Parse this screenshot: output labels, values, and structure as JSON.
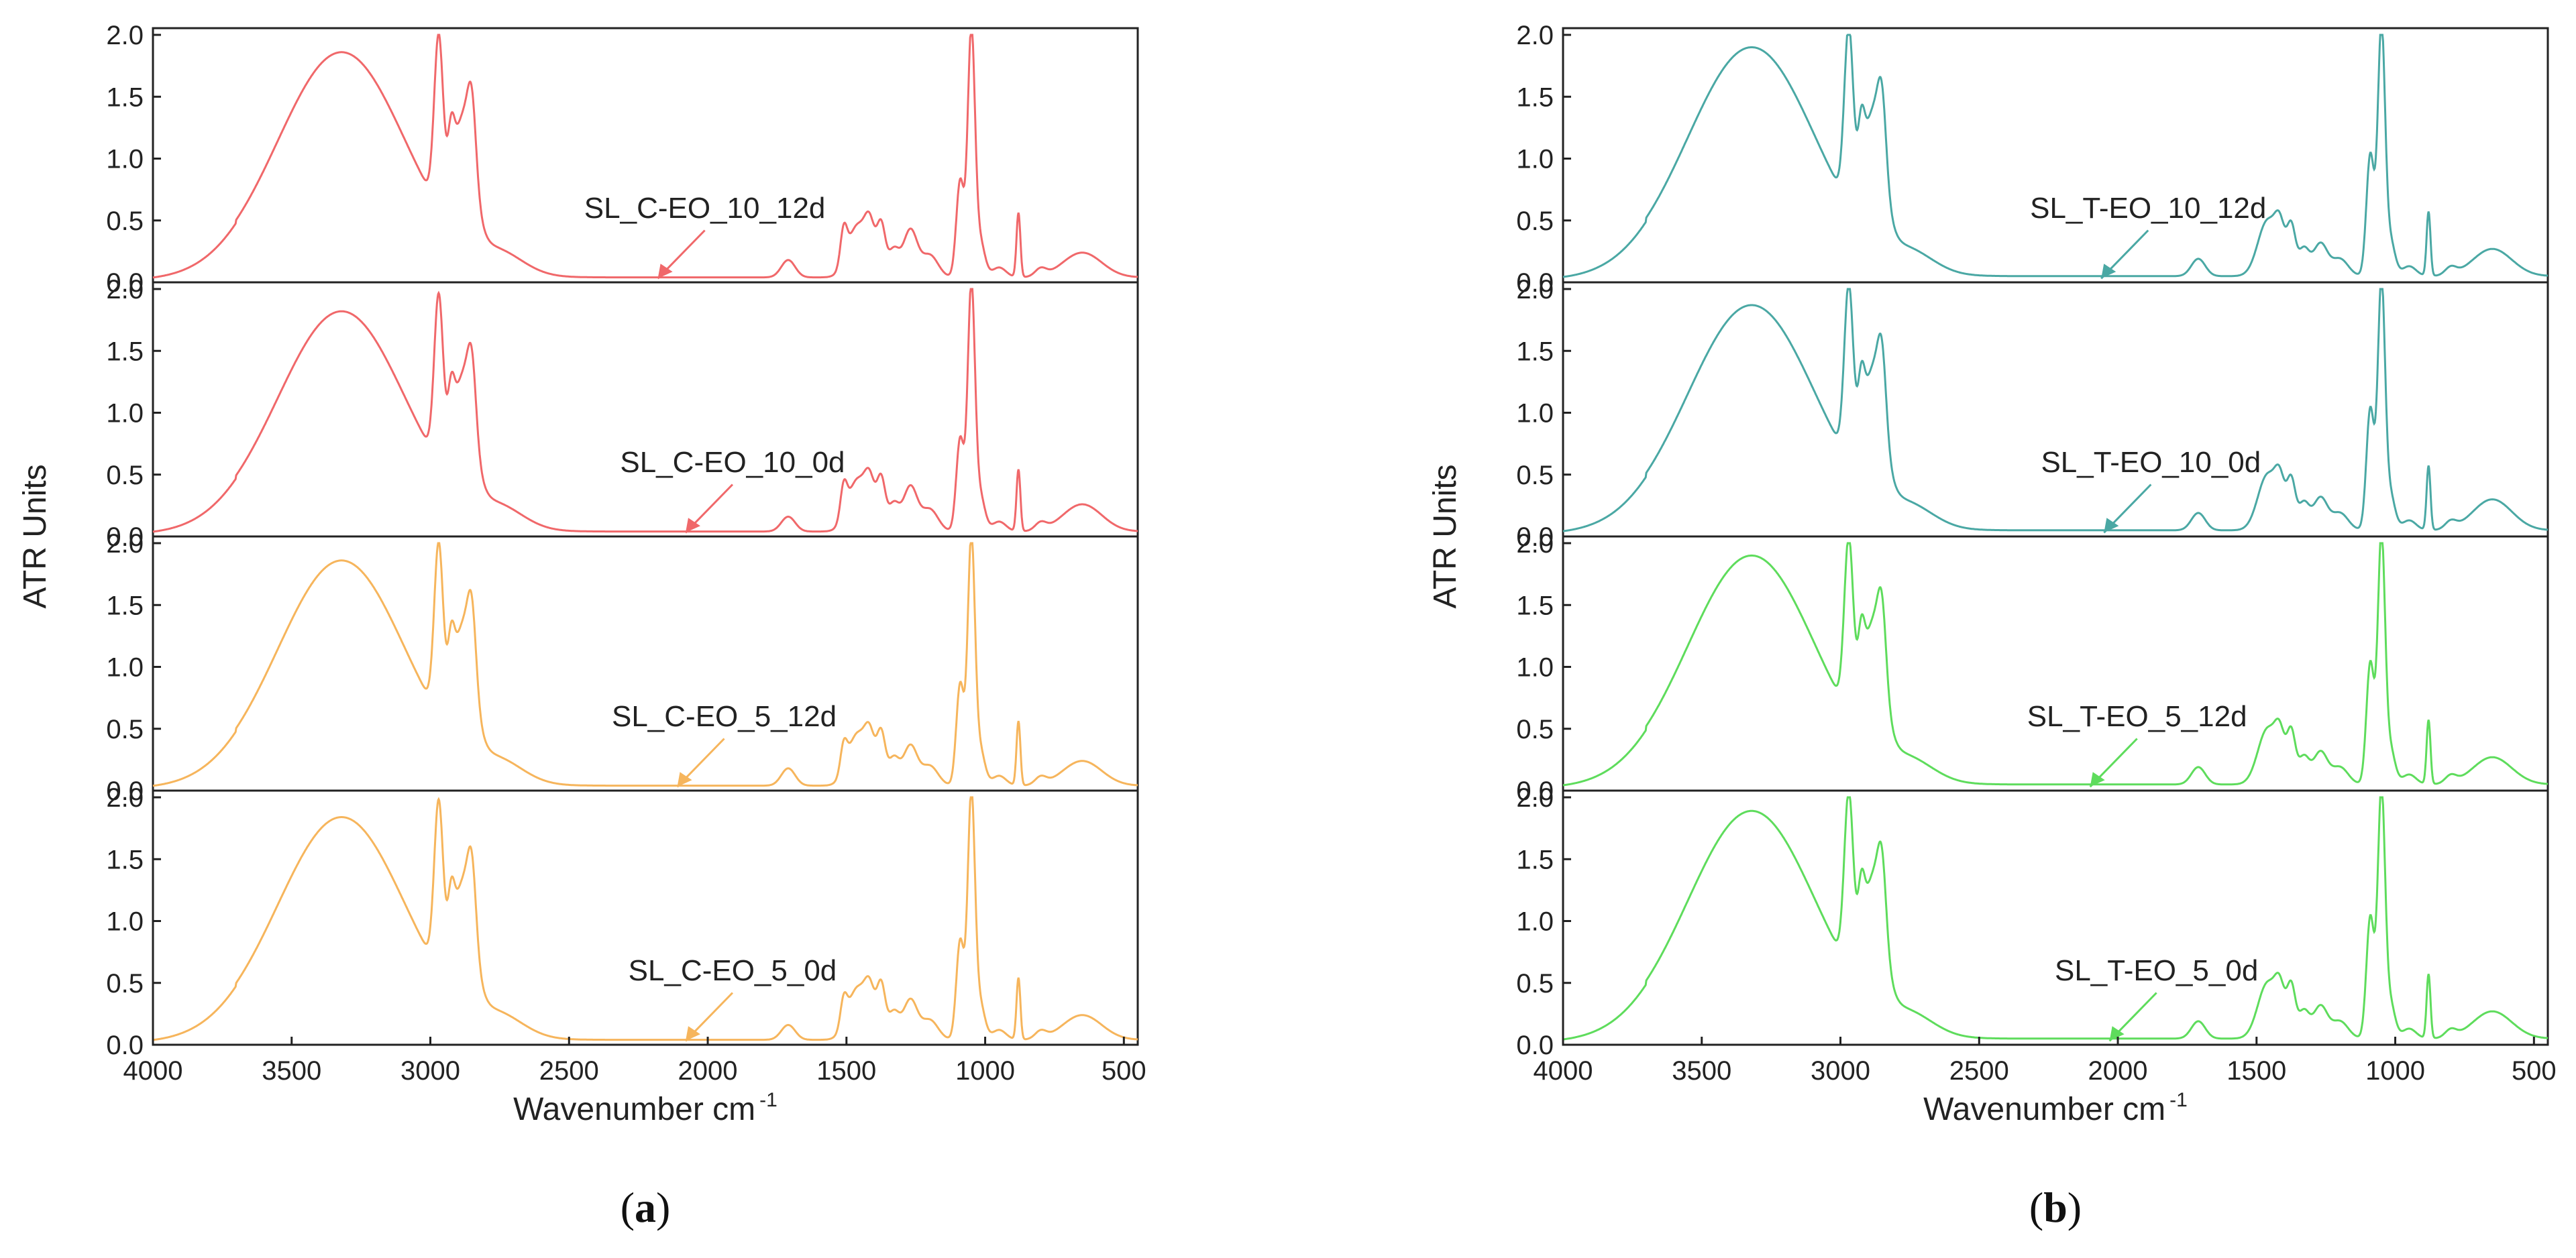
{
  "chart_data": [
    {
      "type": "line",
      "panel": "a",
      "caption_open": "(",
      "caption_letter": "a",
      "caption_close": ")",
      "xlabel": "Wavenumber cm",
      "xlabel_sup": "-1",
      "ylabel": "ATR Units",
      "xlim": [
        4000,
        450
      ],
      "xticks": [
        "4000",
        "3500",
        "3000",
        "2500",
        "2000",
        "1500",
        "1000",
        "500"
      ],
      "ylim": [
        0,
        2.0
      ],
      "yticks": [
        "0.0",
        "0.5",
        "1.0",
        "1.5",
        "2.0"
      ],
      "grid": false,
      "series": [
        {
          "name": "SL_C-EO_10_12d",
          "color": "#f0686a",
          "annotation_x": 2180,
          "baseline": 0.04,
          "peaks": [
            [
              3320,
              1.82,
              230
            ],
            [
              2970,
              1.35,
              16
            ],
            [
              2925,
              0.42,
              12
            ],
            [
              2880,
              0.95,
              36
            ],
            [
              2850,
              0.55,
              15
            ],
            [
              2750,
              0.15,
              90
            ],
            [
              1710,
              0.14,
              25
            ],
            [
              1510,
              0.28,
              12
            ],
            [
              1460,
              0.42,
              35
            ],
            [
              1415,
              0.32,
              18
            ],
            [
              1375,
              0.4,
              15
            ],
            [
              1330,
              0.22,
              20
            ],
            [
              1270,
              0.38,
              25
            ],
            [
              1200,
              0.18,
              30
            ],
            [
              1090,
              0.78,
              14
            ],
            [
              1050,
              1.95,
              13
            ],
            [
              1020,
              0.3,
              18
            ],
            [
              950,
              0.08,
              25
            ],
            [
              880,
              0.52,
              7
            ],
            [
              800,
              0.06,
              20
            ],
            [
              650,
              0.2,
              70
            ]
          ]
        },
        {
          "name": "SL_C-EO_10_0d",
          "color": "#f0686a",
          "annotation_x": 2080,
          "baseline": 0.04,
          "peaks": [
            [
              3320,
              1.78,
              230
            ],
            [
              2970,
              1.32,
              16
            ],
            [
              2925,
              0.4,
              12
            ],
            [
              2880,
              0.92,
              36
            ],
            [
              2850,
              0.52,
              15
            ],
            [
              2750,
              0.15,
              90
            ],
            [
              1710,
              0.12,
              25
            ],
            [
              1510,
              0.26,
              12
            ],
            [
              1460,
              0.42,
              35
            ],
            [
              1415,
              0.3,
              18
            ],
            [
              1375,
              0.4,
              15
            ],
            [
              1330,
              0.22,
              20
            ],
            [
              1270,
              0.36,
              25
            ],
            [
              1200,
              0.18,
              30
            ],
            [
              1090,
              0.75,
              14
            ],
            [
              1050,
              1.94,
              13
            ],
            [
              1020,
              0.3,
              18
            ],
            [
              950,
              0.08,
              25
            ],
            [
              880,
              0.5,
              7
            ],
            [
              800,
              0.06,
              20
            ],
            [
              650,
              0.22,
              70
            ]
          ]
        },
        {
          "name": "SL_C-EO_5_12d",
          "color": "#f6b55c",
          "annotation_x": 2110,
          "baseline": 0.04,
          "peaks": [
            [
              3320,
              1.82,
              230
            ],
            [
              2970,
              1.35,
              16
            ],
            [
              2925,
              0.42,
              12
            ],
            [
              2880,
              0.95,
              36
            ],
            [
              2850,
              0.55,
              15
            ],
            [
              2750,
              0.15,
              90
            ],
            [
              1710,
              0.14,
              25
            ],
            [
              1510,
              0.22,
              12
            ],
            [
              1460,
              0.42,
              35
            ],
            [
              1415,
              0.3,
              18
            ],
            [
              1375,
              0.4,
              15
            ],
            [
              1330,
              0.22,
              20
            ],
            [
              1270,
              0.32,
              25
            ],
            [
              1200,
              0.16,
              30
            ],
            [
              1090,
              0.82,
              14
            ],
            [
              1050,
              1.95,
              13
            ],
            [
              1020,
              0.3,
              18
            ],
            [
              950,
              0.08,
              25
            ],
            [
              880,
              0.52,
              7
            ],
            [
              800,
              0.06,
              20
            ],
            [
              650,
              0.2,
              70
            ]
          ]
        },
        {
          "name": "SL_C-EO_5_0d",
          "color": "#f6b55c",
          "annotation_x": 2080,
          "baseline": 0.04,
          "peaks": [
            [
              3320,
              1.8,
              230
            ],
            [
              2970,
              1.33,
              16
            ],
            [
              2925,
              0.42,
              12
            ],
            [
              2880,
              0.93,
              36
            ],
            [
              2850,
              0.55,
              15
            ],
            [
              2750,
              0.15,
              90
            ],
            [
              1710,
              0.12,
              25
            ],
            [
              1510,
              0.22,
              12
            ],
            [
              1460,
              0.42,
              35
            ],
            [
              1415,
              0.3,
              18
            ],
            [
              1375,
              0.42,
              15
            ],
            [
              1330,
              0.22,
              20
            ],
            [
              1270,
              0.32,
              25
            ],
            [
              1200,
              0.16,
              30
            ],
            [
              1090,
              0.8,
              14
            ],
            [
              1050,
              1.94,
              13
            ],
            [
              1020,
              0.3,
              18
            ],
            [
              950,
              0.08,
              25
            ],
            [
              880,
              0.5,
              7
            ],
            [
              800,
              0.06,
              20
            ],
            [
              650,
              0.2,
              70
            ]
          ]
        }
      ]
    },
    {
      "type": "line",
      "panel": "b",
      "caption_open": "(",
      "caption_letter": "b",
      "caption_close": ")",
      "xlabel": "Wavenumber cm",
      "xlabel_sup": "-1",
      "ylabel": "ATR Units",
      "xlim": [
        4000,
        450
      ],
      "xticks": [
        "4000",
        "3500",
        "3000",
        "2500",
        "2000",
        "1500",
        "1000",
        "500"
      ],
      "ylim": [
        0,
        2.0
      ],
      "yticks": [
        "0.0",
        "0.5",
        "1.0",
        "1.5",
        "2.0"
      ],
      "grid": false,
      "series": [
        {
          "name": "SL_T-EO_10_12d",
          "color": "#4aa8a4",
          "annotation_x": 2060,
          "baseline": 0.05,
          "peaks": [
            [
              3320,
              1.85,
              230
            ],
            [
              2970,
              1.4,
              16
            ],
            [
              2925,
              0.45,
              12
            ],
            [
              2880,
              0.98,
              36
            ],
            [
              2850,
              0.55,
              15
            ],
            [
              2750,
              0.15,
              90
            ],
            [
              1710,
              0.14,
              25
            ],
            [
              1460,
              0.45,
              35
            ],
            [
              1415,
              0.3,
              18
            ],
            [
              1375,
              0.38,
              15
            ],
            [
              1330,
              0.22,
              20
            ],
            [
              1270,
              0.26,
              25
            ],
            [
              1200,
              0.14,
              30
            ],
            [
              1090,
              0.98,
              14
            ],
            [
              1050,
              1.97,
              13
            ],
            [
              1020,
              0.3,
              18
            ],
            [
              950,
              0.08,
              25
            ],
            [
              880,
              0.52,
              7
            ],
            [
              800,
              0.06,
              20
            ],
            [
              650,
              0.22,
              70
            ]
          ]
        },
        {
          "name": "SL_T-EO_10_0d",
          "color": "#4aa8a4",
          "annotation_x": 2050,
          "baseline": 0.05,
          "peaks": [
            [
              3320,
              1.82,
              230
            ],
            [
              2970,
              1.38,
              16
            ],
            [
              2925,
              0.45,
              12
            ],
            [
              2880,
              0.96,
              36
            ],
            [
              2850,
              0.55,
              15
            ],
            [
              2750,
              0.15,
              90
            ],
            [
              1710,
              0.14,
              25
            ],
            [
              1460,
              0.45,
              35
            ],
            [
              1415,
              0.3,
              18
            ],
            [
              1375,
              0.38,
              15
            ],
            [
              1330,
              0.22,
              20
            ],
            [
              1270,
              0.26,
              25
            ],
            [
              1200,
              0.14,
              30
            ],
            [
              1090,
              0.98,
              14
            ],
            [
              1050,
              1.96,
              13
            ],
            [
              1020,
              0.3,
              18
            ],
            [
              950,
              0.08,
              25
            ],
            [
              880,
              0.52,
              7
            ],
            [
              800,
              0.06,
              20
            ],
            [
              650,
              0.25,
              70
            ]
          ]
        },
        {
          "name": "SL_T-EO_5_12d",
          "color": "#5edc5c",
          "annotation_x": 2100,
          "baseline": 0.05,
          "peaks": [
            [
              3320,
              1.85,
              230
            ],
            [
              2970,
              1.38,
              16
            ],
            [
              2925,
              0.45,
              12
            ],
            [
              2880,
              0.96,
              36
            ],
            [
              2850,
              0.55,
              15
            ],
            [
              2750,
              0.15,
              90
            ],
            [
              1710,
              0.14,
              25
            ],
            [
              1460,
              0.45,
              35
            ],
            [
              1415,
              0.3,
              18
            ],
            [
              1375,
              0.4,
              15
            ],
            [
              1330,
              0.22,
              20
            ],
            [
              1270,
              0.26,
              25
            ],
            [
              1200,
              0.14,
              30
            ],
            [
              1090,
              0.98,
              14
            ],
            [
              1050,
              1.96,
              13
            ],
            [
              1020,
              0.3,
              18
            ],
            [
              950,
              0.08,
              25
            ],
            [
              880,
              0.52,
              7
            ],
            [
              800,
              0.06,
              20
            ],
            [
              650,
              0.22,
              70
            ]
          ]
        },
        {
          "name": "SL_T-EO_5_0d",
          "color": "#5edc5c",
          "annotation_x": 2030,
          "baseline": 0.05,
          "peaks": [
            [
              3320,
              1.84,
              230
            ],
            [
              2970,
              1.38,
              16
            ],
            [
              2925,
              0.45,
              12
            ],
            [
              2880,
              0.96,
              36
            ],
            [
              2850,
              0.55,
              15
            ],
            [
              2750,
              0.15,
              90
            ],
            [
              1710,
              0.14,
              25
            ],
            [
              1460,
              0.45,
              35
            ],
            [
              1415,
              0.3,
              18
            ],
            [
              1375,
              0.4,
              15
            ],
            [
              1330,
              0.22,
              20
            ],
            [
              1270,
              0.26,
              25
            ],
            [
              1200,
              0.14,
              30
            ],
            [
              1090,
              0.98,
              14
            ],
            [
              1050,
              1.96,
              13
            ],
            [
              1020,
              0.3,
              18
            ],
            [
              950,
              0.08,
              25
            ],
            [
              880,
              0.52,
              7
            ],
            [
              800,
              0.06,
              20
            ],
            [
              650,
              0.22,
              70
            ]
          ]
        }
      ]
    }
  ]
}
